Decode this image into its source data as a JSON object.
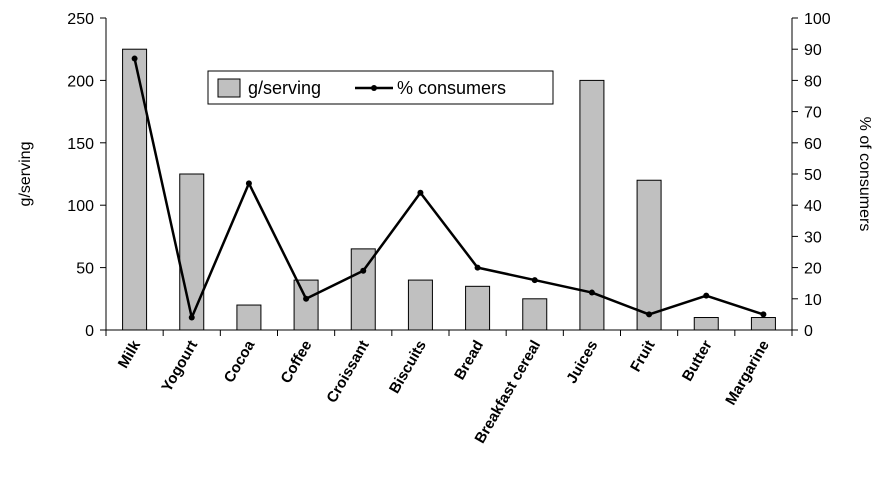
{
  "chart_data": {
    "type": "bar",
    "categories": [
      "Milk",
      "Yogourt",
      "Cocoa",
      "Coffee",
      "Croissant",
      "Biscuits",
      "Bread",
      "Breakfast cereal",
      "Juices",
      "Fruit",
      "Butter",
      "Margarine"
    ],
    "series": [
      {
        "name": "g/serving",
        "type": "bar",
        "axis": "left",
        "values": [
          225,
          125,
          20,
          40,
          65,
          40,
          35,
          25,
          200,
          120,
          10,
          10
        ]
      },
      {
        "name": "% consumers",
        "type": "line",
        "axis": "right",
        "values": [
          87,
          4,
          47,
          10,
          19,
          44,
          20,
          16,
          12,
          5,
          11,
          5
        ]
      }
    ],
    "ylabel": "g/serving",
    "ylabel_right": "% of consumers",
    "ylim": [
      0,
      250
    ],
    "ylim_right": [
      0,
      100
    ],
    "yticks": [
      "0",
      "50",
      "100",
      "150",
      "200",
      "250"
    ],
    "yticks_right": [
      "0",
      "10",
      "20",
      "30",
      "40",
      "50",
      "60",
      "70",
      "80",
      "90",
      "100"
    ],
    "grid": false,
    "legend": "top-center",
    "colors": {
      "bar_fill": "#c0c0c0",
      "bar_stroke": "#000000",
      "line": "#000000"
    }
  }
}
